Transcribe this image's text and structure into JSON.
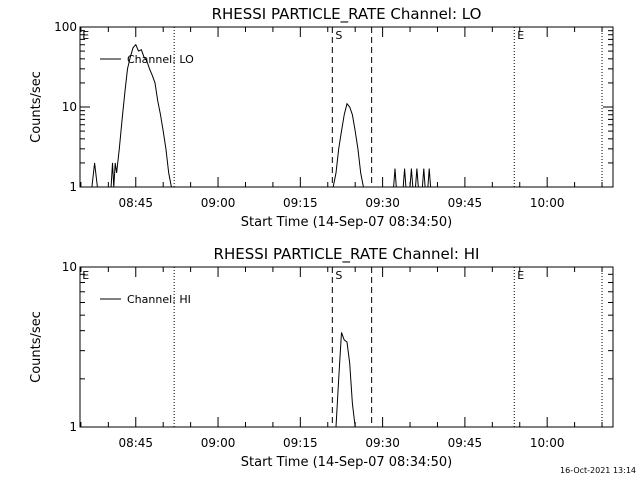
{
  "footer_timestamp": "16-Oct-2021 13:14",
  "chart_data": [
    {
      "type": "line",
      "title": "RHESSI PARTICLE_RATE Channel: LO",
      "xlabel": "Start Time (14-Sep-07 08:34:50)",
      "ylabel": "Counts/sec",
      "yscale": "log",
      "ylim": [
        1,
        100
      ],
      "ytick_values": [
        1,
        10,
        100
      ],
      "ytick_labels": [
        "1",
        "10",
        "100"
      ],
      "xlim": [
        "08:34:50",
        "10:12:00"
      ],
      "xtick_labels": [
        "08:45",
        "09:00",
        "09:15",
        "09:30",
        "09:45",
        "10:00"
      ],
      "legend": "Channel: LO",
      "legend_position": "top-left",
      "markers": [
        {
          "label": "E",
          "time": "08:35:15",
          "style": "none"
        },
        {
          "label": "",
          "time": "08:52:00",
          "style": "dotted"
        },
        {
          "label": "S",
          "time": "09:20:50",
          "style": "dashed"
        },
        {
          "label": "",
          "time": "09:28:00",
          "style": "dashed"
        },
        {
          "label": "E",
          "time": "09:54:00",
          "style": "dotted"
        },
        {
          "label": "",
          "time": "10:10:00",
          "style": "dotted"
        }
      ],
      "series": [
        {
          "name": "Channel: LO",
          "points": [
            [
              "08:37:00",
              1
            ],
            [
              "08:37:30",
              2
            ],
            [
              "08:38:00",
              1
            ],
            [
              "08:40:30",
              1
            ],
            [
              "08:40:45",
              2
            ],
            [
              "08:41:00",
              1
            ],
            [
              "08:41:15",
              2
            ],
            [
              "08:41:30",
              1.5
            ],
            [
              "08:42:00",
              3
            ],
            [
              "08:42:30",
              7
            ],
            [
              "08:43:00",
              15
            ],
            [
              "08:43:30",
              30
            ],
            [
              "08:44:00",
              42
            ],
            [
              "08:44:30",
              55
            ],
            [
              "08:45:00",
              60
            ],
            [
              "08:45:30",
              50
            ],
            [
              "08:46:00",
              52
            ],
            [
              "08:46:30",
              42
            ],
            [
              "08:47:00",
              38
            ],
            [
              "08:47:30",
              30
            ],
            [
              "08:48:00",
              25
            ],
            [
              "08:48:30",
              20
            ],
            [
              "08:49:00",
              12
            ],
            [
              "08:49:30",
              8
            ],
            [
              "08:50:00",
              5
            ],
            [
              "08:50:30",
              3
            ],
            [
              "08:51:00",
              1.5
            ],
            [
              "08:51:30",
              1
            ],
            [
              "09:21:00",
              1
            ],
            [
              "09:21:30",
              1.5
            ],
            [
              "09:22:00",
              3
            ],
            [
              "09:22:30",
              5
            ],
            [
              "09:23:00",
              8
            ],
            [
              "09:23:30",
              11
            ],
            [
              "09:24:00",
              10
            ],
            [
              "09:24:30",
              8
            ],
            [
              "09:25:00",
              5
            ],
            [
              "09:25:30",
              3
            ],
            [
              "09:26:00",
              1.5
            ],
            [
              "09:26:30",
              1
            ],
            [
              "09:32:00",
              1
            ],
            [
              "09:32:15",
              1.7
            ],
            [
              "09:32:30",
              1
            ],
            [
              "09:33:45",
              1
            ],
            [
              "09:34:00",
              1.7
            ],
            [
              "09:34:15",
              1
            ],
            [
              "09:35:00",
              1
            ],
            [
              "09:35:15",
              1.7
            ],
            [
              "09:35:30",
              1
            ],
            [
              "09:36:00",
              1
            ],
            [
              "09:36:15",
              1.7
            ],
            [
              "09:36:30",
              1
            ],
            [
              "09:37:15",
              1
            ],
            [
              "09:37:30",
              1.7
            ],
            [
              "09:37:45",
              1
            ],
            [
              "09:38:15",
              1
            ],
            [
              "09:38:30",
              1.7
            ],
            [
              "09:38:45",
              1
            ]
          ]
        }
      ]
    },
    {
      "type": "line",
      "title": "RHESSI PARTICLE_RATE Channel: HI",
      "xlabel": "Start Time (14-Sep-07 08:34:50)",
      "ylabel": "Counts/sec",
      "yscale": "log",
      "ylim": [
        1,
        10
      ],
      "ytick_values": [
        1,
        10
      ],
      "ytick_labels": [
        "1",
        "10"
      ],
      "xlim": [
        "08:34:50",
        "10:12:00"
      ],
      "xtick_labels": [
        "08:45",
        "09:00",
        "09:15",
        "09:30",
        "09:45",
        "10:00"
      ],
      "legend": "Channel: HI",
      "legend_position": "top-left",
      "markers": [
        {
          "label": "E",
          "time": "08:35:15",
          "style": "none"
        },
        {
          "label": "",
          "time": "08:52:00",
          "style": "dotted"
        },
        {
          "label": "S",
          "time": "09:20:50",
          "style": "dashed"
        },
        {
          "label": "",
          "time": "09:28:00",
          "style": "dashed"
        },
        {
          "label": "E",
          "time": "09:54:00",
          "style": "dotted"
        },
        {
          "label": "",
          "time": "10:10:00",
          "style": "dotted"
        }
      ],
      "series": [
        {
          "name": "Channel: HI",
          "points": [
            [
              "09:21:30",
              1
            ],
            [
              "09:22:00",
              2
            ],
            [
              "09:22:30",
              3.9
            ],
            [
              "09:23:00",
              3.5
            ],
            [
              "09:23:30",
              3.4
            ],
            [
              "09:24:00",
              2.5
            ],
            [
              "09:24:30",
              1.4
            ],
            [
              "09:25:00",
              1
            ]
          ]
        }
      ]
    }
  ]
}
